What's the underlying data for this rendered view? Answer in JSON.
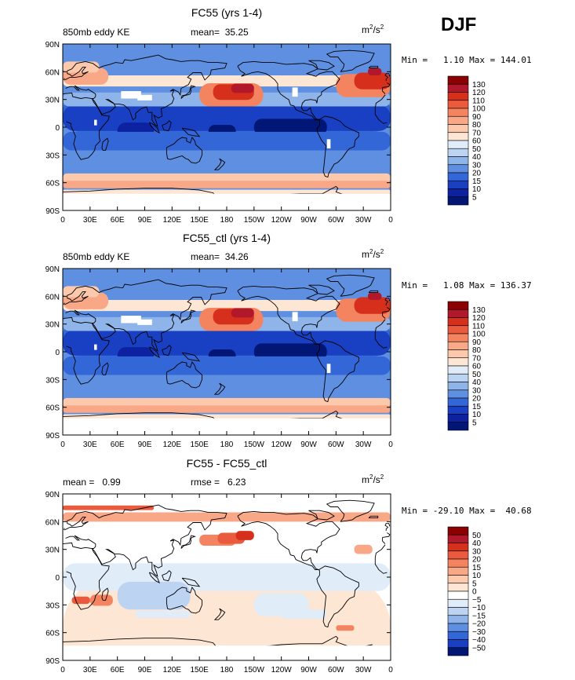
{
  "season": "DJF",
  "panels": [
    {
      "title": "FC55 (yrs 1-4)",
      "left_label": "850mb eddy KE",
      "center_label": "mean=  35.25",
      "units": {
        "base": "m",
        "exp1": "2",
        "mid": "/s",
        "exp2": "2"
      },
      "minmax": "Min =   1.10 Max = 144.01",
      "colorbar": {
        "labels": [
          "130",
          "120",
          "110",
          "100",
          "90",
          "80",
          "70",
          "60",
          "50",
          "40",
          "30",
          "20",
          "15",
          "10",
          "5"
        ],
        "colors": [
          "#8b0000",
          "#b2182b",
          "#d6301d",
          "#ea5a3c",
          "#f4845f",
          "#f9a887",
          "#fcc9ad",
          "#fde6d3",
          "#e1ecf9",
          "#bcd3f2",
          "#8fb4ea",
          "#5e8fe0",
          "#3366d6",
          "#1940c2",
          "#0c22a0",
          "#021675"
        ]
      },
      "map_type": "ke"
    },
    {
      "title": "FC55_ctl (yrs 1-4)",
      "left_label": "850mb eddy KE",
      "center_label": "mean=  34.26",
      "units": {
        "base": "m",
        "exp1": "2",
        "mid": "/s",
        "exp2": "2"
      },
      "minmax": "Min =   1.08 Max = 136.37",
      "colorbar": {
        "labels": [
          "130",
          "120",
          "110",
          "100",
          "90",
          "80",
          "70",
          "60",
          "50",
          "40",
          "30",
          "20",
          "15",
          "10",
          "5"
        ],
        "colors": [
          "#8b0000",
          "#b2182b",
          "#d6301d",
          "#ea5a3c",
          "#f4845f",
          "#f9a887",
          "#fcc9ad",
          "#fde6d3",
          "#e1ecf9",
          "#bcd3f2",
          "#8fb4ea",
          "#5e8fe0",
          "#3366d6",
          "#1940c2",
          "#0c22a0",
          "#021675"
        ]
      },
      "map_type": "ke"
    },
    {
      "title": "FC55 - FC55_ctl",
      "left_label": "mean =   0.99",
      "center_label": "rmse =   6.23",
      "units": {
        "base": "m",
        "exp1": "2",
        "mid": "/s",
        "exp2": "2"
      },
      "minmax": "Min = -29.10 Max =  40.68",
      "colorbar": {
        "labels": [
          "50",
          "40",
          "30",
          "20",
          "15",
          "10",
          "5",
          "0",
          "−5",
          "−10",
          "−15",
          "−20",
          "−30",
          "−40",
          "−50"
        ],
        "colors": [
          "#8b0000",
          "#b2182b",
          "#d6301d",
          "#ea5a3c",
          "#f4845f",
          "#f9a887",
          "#fcc9ad",
          "#fde6d3",
          "#ffffff",
          "#e1ecf9",
          "#bcd3f2",
          "#8fb4ea",
          "#5e8fe0",
          "#3366d6",
          "#1940c2",
          "#021675"
        ]
      },
      "map_type": "diff"
    }
  ],
  "lat_labels": [
    "90N",
    "60N",
    "30N",
    "0",
    "30S",
    "60S",
    "90S"
  ],
  "lon_labels": [
    "0",
    "30E",
    "60E",
    "90E",
    "120E",
    "150E",
    "180",
    "150W",
    "120W",
    "90W",
    "60W",
    "30W",
    "0"
  ]
}
